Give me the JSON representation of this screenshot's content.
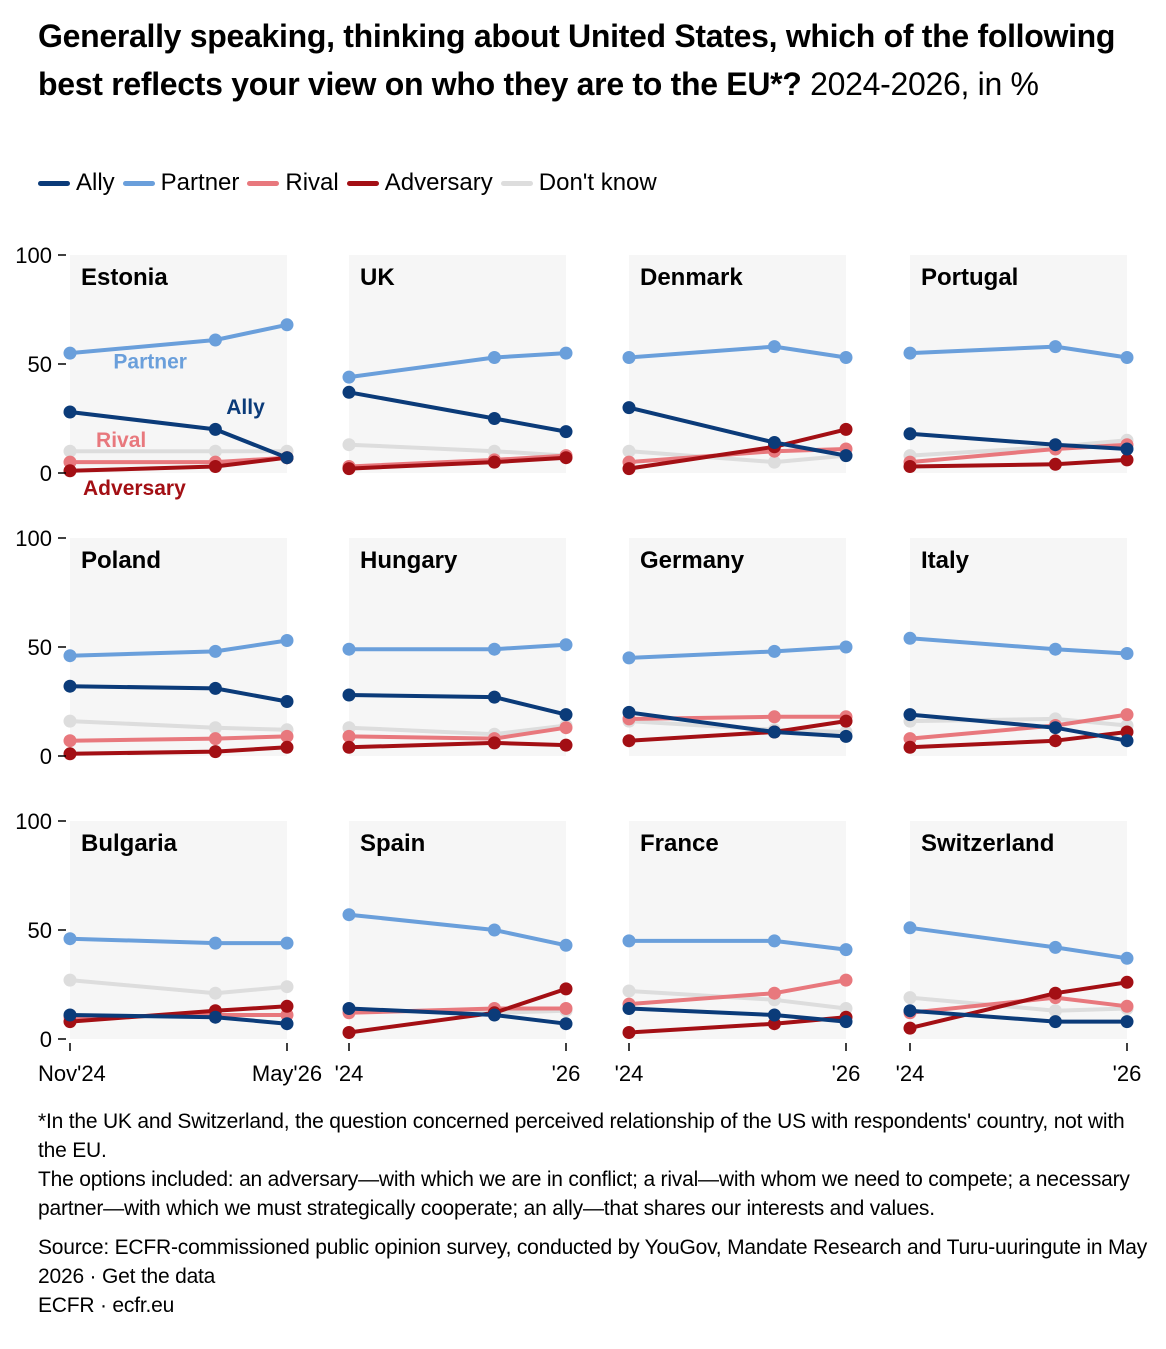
{
  "title": {
    "bold": "Generally speaking, thinking about United States, which of the following best reflects your view on who they are to the EU*?",
    "normal": " 2024-2026, in %"
  },
  "colors": {
    "Ally": "#0b3b79",
    "Partner": "#6a9fdb",
    "Rival": "#e8787d",
    "Adversary": "#a30f14",
    "Don't know": "#dddddd"
  },
  "legend": [
    "Ally",
    "Partner",
    "Rival",
    "Adversary",
    "Don't know"
  ],
  "chart_data": {
    "type": "line",
    "layout": "small-multiples 3 rows x 4 columns",
    "ylim": [
      0,
      100
    ],
    "y_ticks": [
      "0",
      "50",
      "100"
    ],
    "x_ticks": {
      "first_column": [
        "Nov'24",
        "May'26"
      ],
      "other_columns": [
        "'24",
        "'26"
      ]
    },
    "series_names": [
      "Ally",
      "Partner",
      "Rival",
      "Adversary",
      "Don't know"
    ],
    "inline_labels": [
      "Partner",
      "Ally",
      "Rival",
      "Adversary"
    ],
    "panels": [
      {
        "country": "Estonia",
        "x": [
          0,
          0.67,
          1
        ],
        "series": {
          "Ally": [
            28,
            20,
            7
          ],
          "Partner": [
            55,
            61,
            68
          ],
          "Rival": [
            5,
            5,
            7
          ],
          "Adversary": [
            1,
            3,
            7
          ],
          "Don't know": [
            10,
            10,
            10
          ]
        }
      },
      {
        "country": "UK",
        "x": [
          0,
          0.67,
          1
        ],
        "series": {
          "Ally": [
            37,
            25,
            19
          ],
          "Partner": [
            44,
            53,
            55
          ],
          "Rival": [
            3,
            6,
            8
          ],
          "Adversary": [
            2,
            5,
            7
          ],
          "Don't know": [
            13,
            10,
            8
          ]
        }
      },
      {
        "country": "Denmark",
        "x": [
          0,
          0.67,
          1
        ],
        "series": {
          "Ally": [
            30,
            14,
            8
          ],
          "Partner": [
            53,
            58,
            53
          ],
          "Rival": [
            5,
            10,
            11
          ],
          "Adversary": [
            2,
            12,
            20
          ],
          "Don't know": [
            10,
            5,
            8
          ]
        }
      },
      {
        "country": "Portugal",
        "x": [
          0,
          0.67,
          1
        ],
        "series": {
          "Ally": [
            18,
            13,
            11
          ],
          "Partner": [
            55,
            58,
            53
          ],
          "Rival": [
            5,
            11,
            13
          ],
          "Adversary": [
            3,
            4,
            6
          ],
          "Don't know": [
            8,
            12,
            15
          ]
        }
      },
      {
        "country": "Poland",
        "x": [
          0,
          0.67,
          1
        ],
        "series": {
          "Ally": [
            32,
            31,
            25
          ],
          "Partner": [
            46,
            48,
            53
          ],
          "Rival": [
            7,
            8,
            9
          ],
          "Adversary": [
            1,
            2,
            4
          ],
          "Don't know": [
            16,
            13,
            12
          ]
        }
      },
      {
        "country": "Hungary",
        "x": [
          0,
          0.67,
          1
        ],
        "series": {
          "Ally": [
            28,
            27,
            19
          ],
          "Partner": [
            49,
            49,
            51
          ],
          "Rival": [
            9,
            8,
            13
          ],
          "Adversary": [
            4,
            6,
            5
          ],
          "Don't know": [
            13,
            10,
            14
          ]
        }
      },
      {
        "country": "Germany",
        "x": [
          0,
          0.67,
          1
        ],
        "series": {
          "Ally": [
            20,
            11,
            9
          ],
          "Partner": [
            45,
            48,
            50
          ],
          "Rival": [
            17,
            18,
            18
          ],
          "Adversary": [
            7,
            11,
            16
          ],
          "Don't know": [
            16,
            12,
            11
          ]
        }
      },
      {
        "country": "Italy",
        "x": [
          0,
          0.67,
          1
        ],
        "series": {
          "Ally": [
            19,
            13,
            7
          ],
          "Partner": [
            54,
            49,
            47
          ],
          "Rival": [
            8,
            14,
            19
          ],
          "Adversary": [
            4,
            7,
            11
          ],
          "Don't know": [
            16,
            17,
            14
          ]
        }
      },
      {
        "country": "Bulgaria",
        "x": [
          0,
          0.67,
          1
        ],
        "series": {
          "Ally": [
            11,
            10,
            7
          ],
          "Partner": [
            46,
            44,
            44
          ],
          "Rival": [
            10,
            11,
            11
          ],
          "Adversary": [
            8,
            13,
            15
          ],
          "Don't know": [
            27,
            21,
            24
          ]
        }
      },
      {
        "country": "Spain",
        "x": [
          0,
          0.67,
          1
        ],
        "series": {
          "Ally": [
            14,
            11,
            7
          ],
          "Partner": [
            57,
            50,
            43
          ],
          "Rival": [
            12,
            14,
            14
          ],
          "Adversary": [
            3,
            12,
            23
          ],
          "Don't know": [
            13,
            12,
            13
          ]
        }
      },
      {
        "country": "France",
        "x": [
          0,
          0.67,
          1
        ],
        "series": {
          "Ally": [
            14,
            11,
            8
          ],
          "Partner": [
            45,
            45,
            41
          ],
          "Rival": [
            16,
            21,
            27
          ],
          "Adversary": [
            3,
            7,
            10
          ],
          "Don't know": [
            22,
            18,
            14
          ]
        }
      },
      {
        "country": "Switzerland",
        "x": [
          0,
          0.67,
          1
        ],
        "series": {
          "Ally": [
            13,
            8,
            8
          ],
          "Partner": [
            51,
            42,
            37
          ],
          "Rival": [
            12,
            19,
            15
          ],
          "Adversary": [
            5,
            21,
            26
          ],
          "Don't know": [
            19,
            13,
            14
          ]
        }
      }
    ]
  },
  "notes": {
    "footnote": "*In the UK and Switzerland, the question concerned perceived relationship of the US with respondents' country, not with the EU.",
    "options": "The options included: an adversary—with which we are in conflict; a rival—with whom we need to compete; a necessary partner—with which we must strategically cooperate; an ally—that shares our interests and values.",
    "source": "Source: ECFR-commissioned public opinion survey, conducted by YouGov, Mandate Research and Turu-uuringute in May 2026 · Get the data",
    "brand": "ECFR · ecfr.eu"
  }
}
